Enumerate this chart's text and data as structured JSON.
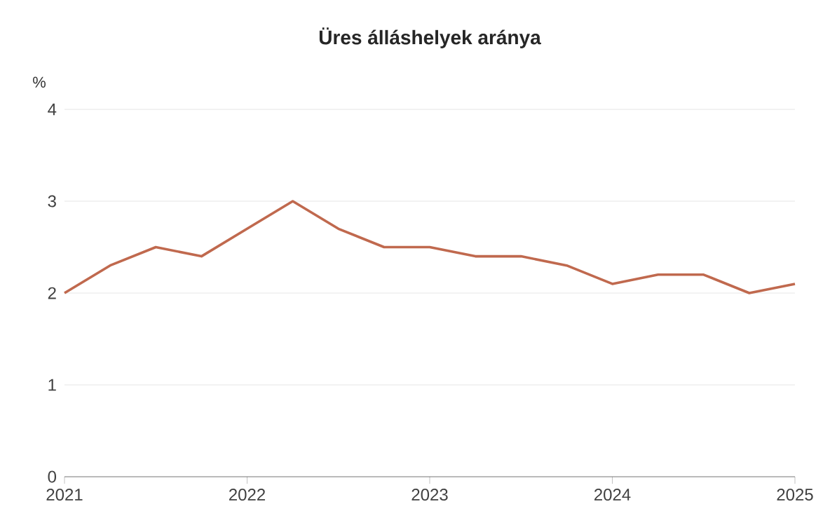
{
  "chart_data": {
    "type": "line",
    "title": "Üres álláshelyek aránya",
    "ylabel": "%",
    "x": [
      2021,
      2021.25,
      2021.5,
      2021.75,
      2022,
      2022.25,
      2022.5,
      2022.75,
      2023,
      2023.25,
      2023.5,
      2023.75,
      2024,
      2024.25,
      2024.5,
      2024.75,
      2025
    ],
    "values": [
      2.0,
      2.3,
      2.5,
      2.4,
      2.7,
      3.0,
      2.7,
      2.5,
      2.5,
      2.4,
      2.4,
      2.3,
      2.1,
      2.2,
      2.2,
      2.0,
      2.1
    ],
    "color": "#c0694e",
    "xlim": [
      2021,
      2025
    ],
    "xticks": [
      2021,
      2022,
      2023,
      2024,
      2025
    ],
    "ylim": [
      0,
      4
    ],
    "yticks": [
      0,
      1,
      2,
      3,
      4
    ],
    "grid": "y"
  }
}
